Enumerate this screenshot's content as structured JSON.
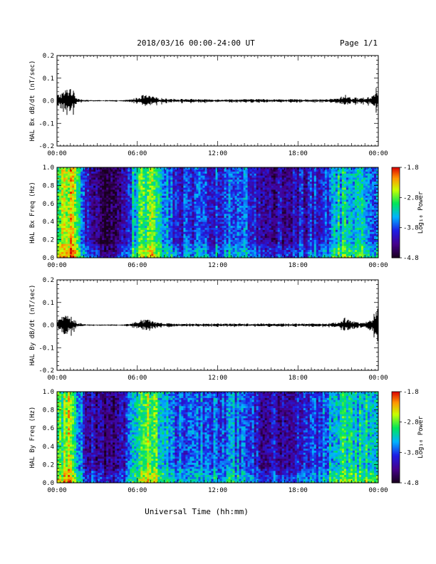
{
  "header": {
    "title": "2018/03/16  00:00-24:00 UT",
    "page": "Page 1/1"
  },
  "xlabel": "Universal Time (hh:mm)",
  "x_ticks": [
    "00:00",
    "06:00",
    "12:00",
    "18:00",
    "00:00"
  ],
  "colorbar": {
    "label": "Log₁₀ Power",
    "ticks": [
      "-1.8",
      "-2.8",
      "-3.8",
      "-4.8"
    ],
    "range": [
      -4.8,
      -1.8
    ]
  },
  "chart_data": [
    {
      "type": "line",
      "ylabel": "HAL Bx dB/dt (nT/sec)",
      "x_range_hours": [
        0,
        24
      ],
      "ylim": [
        -0.2,
        0.2
      ],
      "y_ticks": [
        "0.2",
        "0.1",
        "0.0",
        "-0.1",
        "-0.2"
      ],
      "series": [
        {
          "x_hours": [
            0.0,
            0.5,
            1.0,
            1.5,
            2.0,
            3.0,
            4.0,
            5.0,
            5.5,
            6.0,
            6.5,
            7.0,
            7.5,
            8.0,
            9.0,
            10.0,
            11.0,
            12.0,
            13.0,
            14.0,
            15.0,
            16.0,
            17.0,
            18.0,
            19.0,
            20.0,
            21.0,
            21.5,
            22.0,
            23.0,
            23.5,
            23.9
          ],
          "amplitude": [
            0.02,
            0.03,
            0.05,
            0.01,
            0.003,
            0.002,
            0.002,
            0.002,
            0.005,
            0.01,
            0.02,
            0.015,
            0.01,
            0.008,
            0.006,
            0.006,
            0.005,
            0.005,
            0.005,
            0.005,
            0.006,
            0.005,
            0.005,
            0.005,
            0.005,
            0.005,
            0.008,
            0.02,
            0.01,
            0.01,
            0.015,
            0.05
          ]
        }
      ]
    },
    {
      "type": "heatmap",
      "ylabel": "HAL Bx Freq (Hz)",
      "x_range_hours": [
        0,
        24
      ],
      "ylim": [
        0,
        1.0
      ],
      "y_ticks": [
        "1.0",
        "0.8",
        "0.6",
        "0.4",
        "0.2",
        "0.0"
      ],
      "activity_hours": [
        0.0,
        1.0,
        2.0,
        3.0,
        4.0,
        5.0,
        6.0,
        7.0,
        8.0,
        9.0,
        10.0,
        11.0,
        12.0,
        13.0,
        14.0,
        15.0,
        16.0,
        17.0,
        18.0,
        19.0,
        20.0,
        21.0,
        22.0,
        23.0,
        24.0
      ],
      "activity_level": [
        -3.0,
        -2.2,
        -3.8,
        -4.3,
        -4.5,
        -4.1,
        -3.0,
        -2.7,
        -3.3,
        -3.8,
        -3.7,
        -3.7,
        -3.7,
        -3.5,
        -3.6,
        -3.9,
        -4.0,
        -4.1,
        -4.0,
        -3.9,
        -3.7,
        -3.2,
        -3.1,
        -3.3,
        -3.4
      ]
    },
    {
      "type": "line",
      "ylabel": "HAL By dB/dt (nT/sec)",
      "x_range_hours": [
        0,
        24
      ],
      "ylim": [
        -0.2,
        0.2
      ],
      "y_ticks": [
        "0.2",
        "0.1",
        "0.0",
        "-0.1",
        "-0.2"
      ],
      "series": [
        {
          "x_hours": [
            0.0,
            0.5,
            1.0,
            1.5,
            2.0,
            3.0,
            4.0,
            5.0,
            5.5,
            6.0,
            6.5,
            7.0,
            7.5,
            8.0,
            9.0,
            10.0,
            11.0,
            12.0,
            13.0,
            14.0,
            15.0,
            16.0,
            17.0,
            18.0,
            19.0,
            20.0,
            21.0,
            21.5,
            22.0,
            23.0,
            23.5,
            23.9
          ],
          "amplitude": [
            0.02,
            0.03,
            0.03,
            0.01,
            0.003,
            0.002,
            0.002,
            0.002,
            0.005,
            0.015,
            0.02,
            0.015,
            0.008,
            0.006,
            0.005,
            0.005,
            0.005,
            0.005,
            0.005,
            0.005,
            0.005,
            0.005,
            0.005,
            0.005,
            0.005,
            0.005,
            0.01,
            0.025,
            0.012,
            0.01,
            0.02,
            0.06
          ]
        }
      ]
    },
    {
      "type": "heatmap",
      "ylabel": "HAL By Freq (Hz)",
      "x_range_hours": [
        0,
        24
      ],
      "ylim": [
        0,
        1.0
      ],
      "y_ticks": [
        "1.0",
        "0.8",
        "0.6",
        "0.4",
        "0.2",
        "0.0"
      ],
      "activity_hours": [
        0.0,
        1.0,
        2.0,
        3.0,
        4.0,
        5.0,
        6.0,
        7.0,
        8.0,
        9.0,
        10.0,
        11.0,
        12.0,
        13.0,
        14.0,
        15.0,
        16.0,
        17.0,
        18.0,
        19.0,
        20.0,
        21.0,
        22.0,
        23.0,
        24.0
      ],
      "activity_level": [
        -3.0,
        -2.3,
        -3.8,
        -4.2,
        -4.4,
        -4.0,
        -2.9,
        -2.6,
        -3.2,
        -3.7,
        -3.6,
        -3.6,
        -3.6,
        -3.5,
        -3.6,
        -3.9,
        -4.0,
        -4.1,
        -3.9,
        -3.8,
        -3.6,
        -3.1,
        -3.0,
        -3.2,
        -3.3
      ]
    }
  ]
}
